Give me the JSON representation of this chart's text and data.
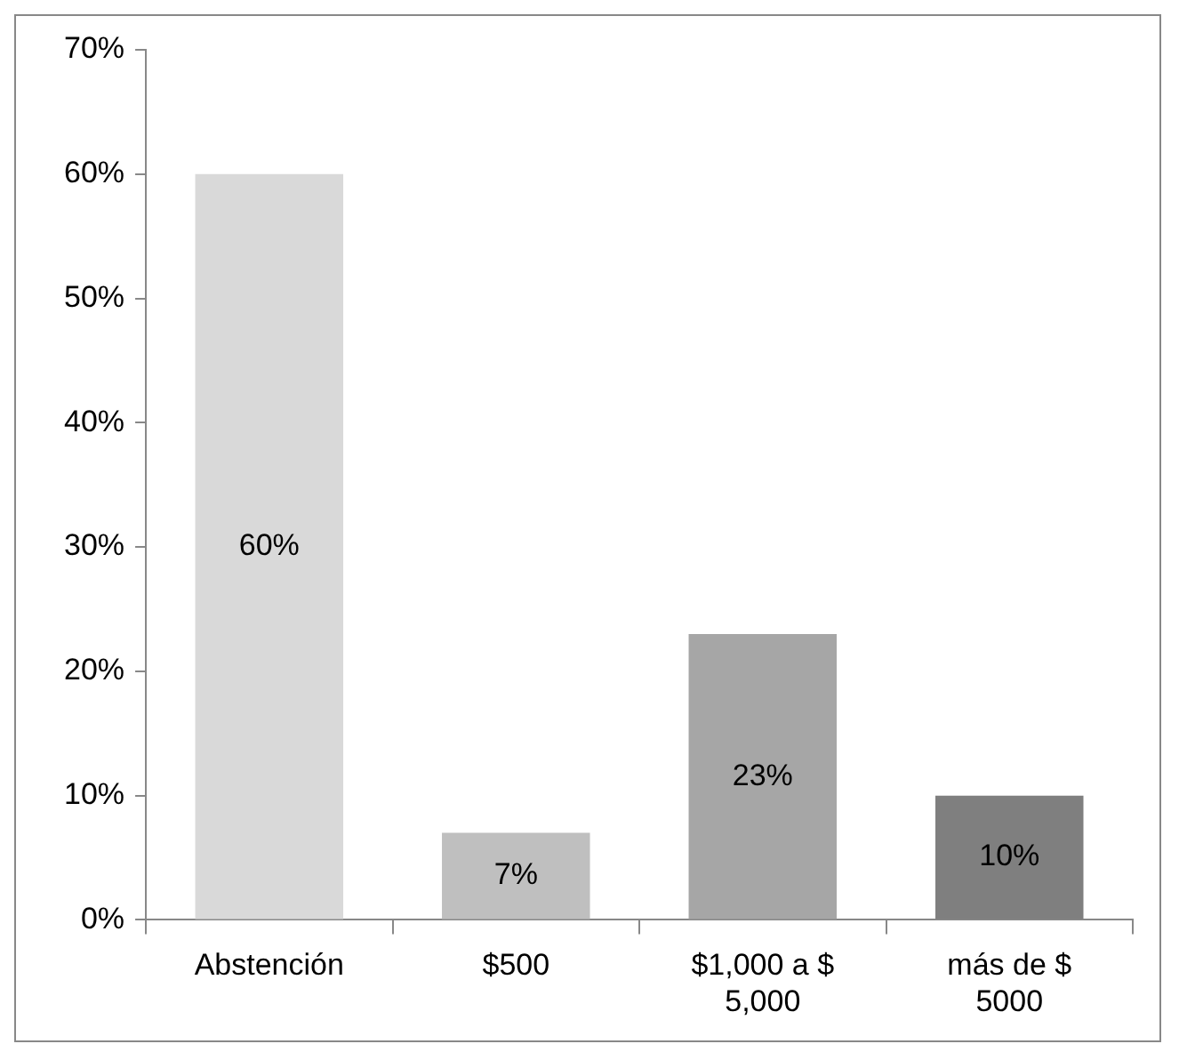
{
  "chart_data": {
    "type": "bar",
    "categories": [
      "Abstención",
      "$500",
      "$1,000 a $ 5,000",
      "más de $ 5000"
    ],
    "values": [
      60,
      7,
      23,
      10
    ],
    "colors": [
      "#d9d9d9",
      "#bfbfbf",
      "#a6a6a6",
      "#7f7f7f"
    ],
    "ylim": [
      0,
      70
    ],
    "yticks": [
      {
        "value": 0,
        "label": "0%"
      },
      {
        "value": 10,
        "label": "10%"
      },
      {
        "value": 20,
        "label": "20%"
      },
      {
        "value": 30,
        "label": "30%"
      },
      {
        "value": 40,
        "label": "40%"
      },
      {
        "value": 50,
        "label": "50%"
      },
      {
        "value": 60,
        "label": "60%"
      },
      {
        "value": 70,
        "label": "70%"
      }
    ],
    "value_labels": [
      "60%",
      "7%",
      "23%",
      "10%"
    ],
    "grid": false,
    "legend": false
  }
}
